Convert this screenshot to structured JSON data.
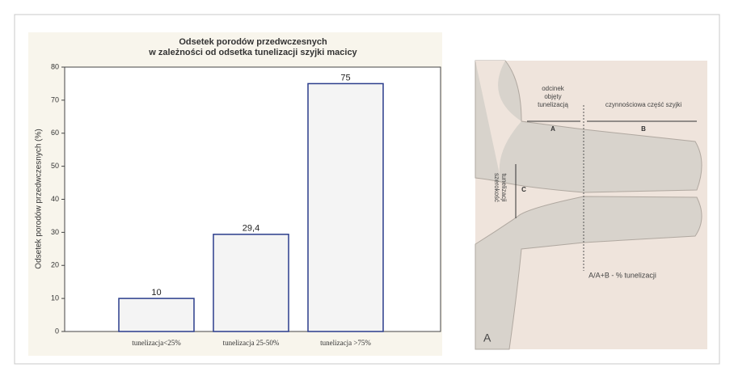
{
  "chart_data": {
    "type": "bar",
    "title": [
      "Odsetek porodów przedwczesnych",
      "w zależności od odsetka tunelizacji szyjki macicy"
    ],
    "y_label": "Odsetek porodów przedwczesnych (%)",
    "categories": [
      "tunelizacja<25%",
      "tunelizacja 25-50%",
      "tunelizacja >75%"
    ],
    "values": [
      10,
      29.4,
      75
    ],
    "value_labels": [
      "10",
      "29,4",
      "75"
    ],
    "color": "#f4f4f4",
    "edge_color": "#2b3d8c",
    "ylim": [
      0,
      80
    ],
    "yticks": [
      0,
      10,
      20,
      30,
      40,
      50,
      60,
      70,
      80
    ]
  },
  "diagram": {
    "labels": {
      "tunnel_segment": [
        "odcinek",
        "objęty",
        "tunelizacją"
      ],
      "functional_part": "czynnościowa część szyjki",
      "a": "A",
      "b": "B",
      "c": "C",
      "tunnel_width": [
        "szerokość",
        "tunelizacji"
      ],
      "formula": "A/A+B - % tunelizacji",
      "panel": "A"
    }
  }
}
